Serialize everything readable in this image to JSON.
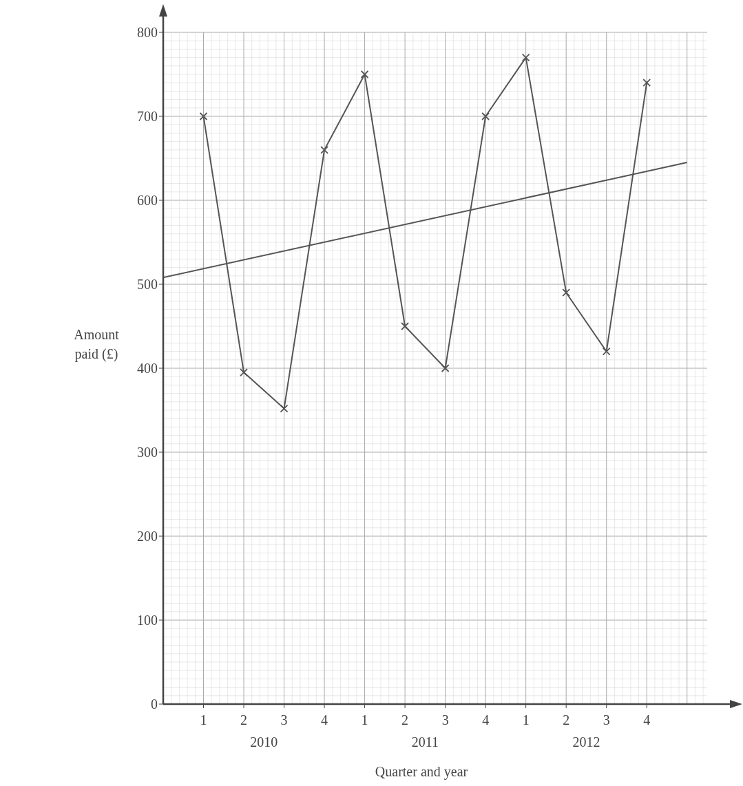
{
  "chart_data": {
    "type": "line",
    "xlabel": "Quarter and year",
    "ylabel": "Amount paid (£)",
    "annotations": [
      "2010",
      "2011",
      "2012"
    ],
    "categories": [
      null,
      "1",
      "2",
      "3",
      "4",
      "1",
      "2",
      "3",
      "4",
      "1",
      "2",
      "3",
      "4",
      null
    ],
    "ylim": [
      0,
      800
    ],
    "yticks": [
      0,
      100,
      200,
      300,
      400,
      500,
      600,
      700,
      800
    ],
    "grid": true,
    "marker": "cross",
    "line_style": "solid",
    "series": [
      {
        "color": "#555555",
        "values": [
          null,
          700,
          395,
          352,
          660,
          750,
          450,
          400,
          700,
          770,
          490,
          420,
          740,
          null
        ]
      },
      {
        "type": "line",
        "marker": "none",
        "color": "#555555",
        "values": [
          508,
          null,
          null,
          null,
          null,
          null,
          null,
          null,
          null,
          null,
          null,
          null,
          null,
          645
        ]
      }
    ]
  }
}
